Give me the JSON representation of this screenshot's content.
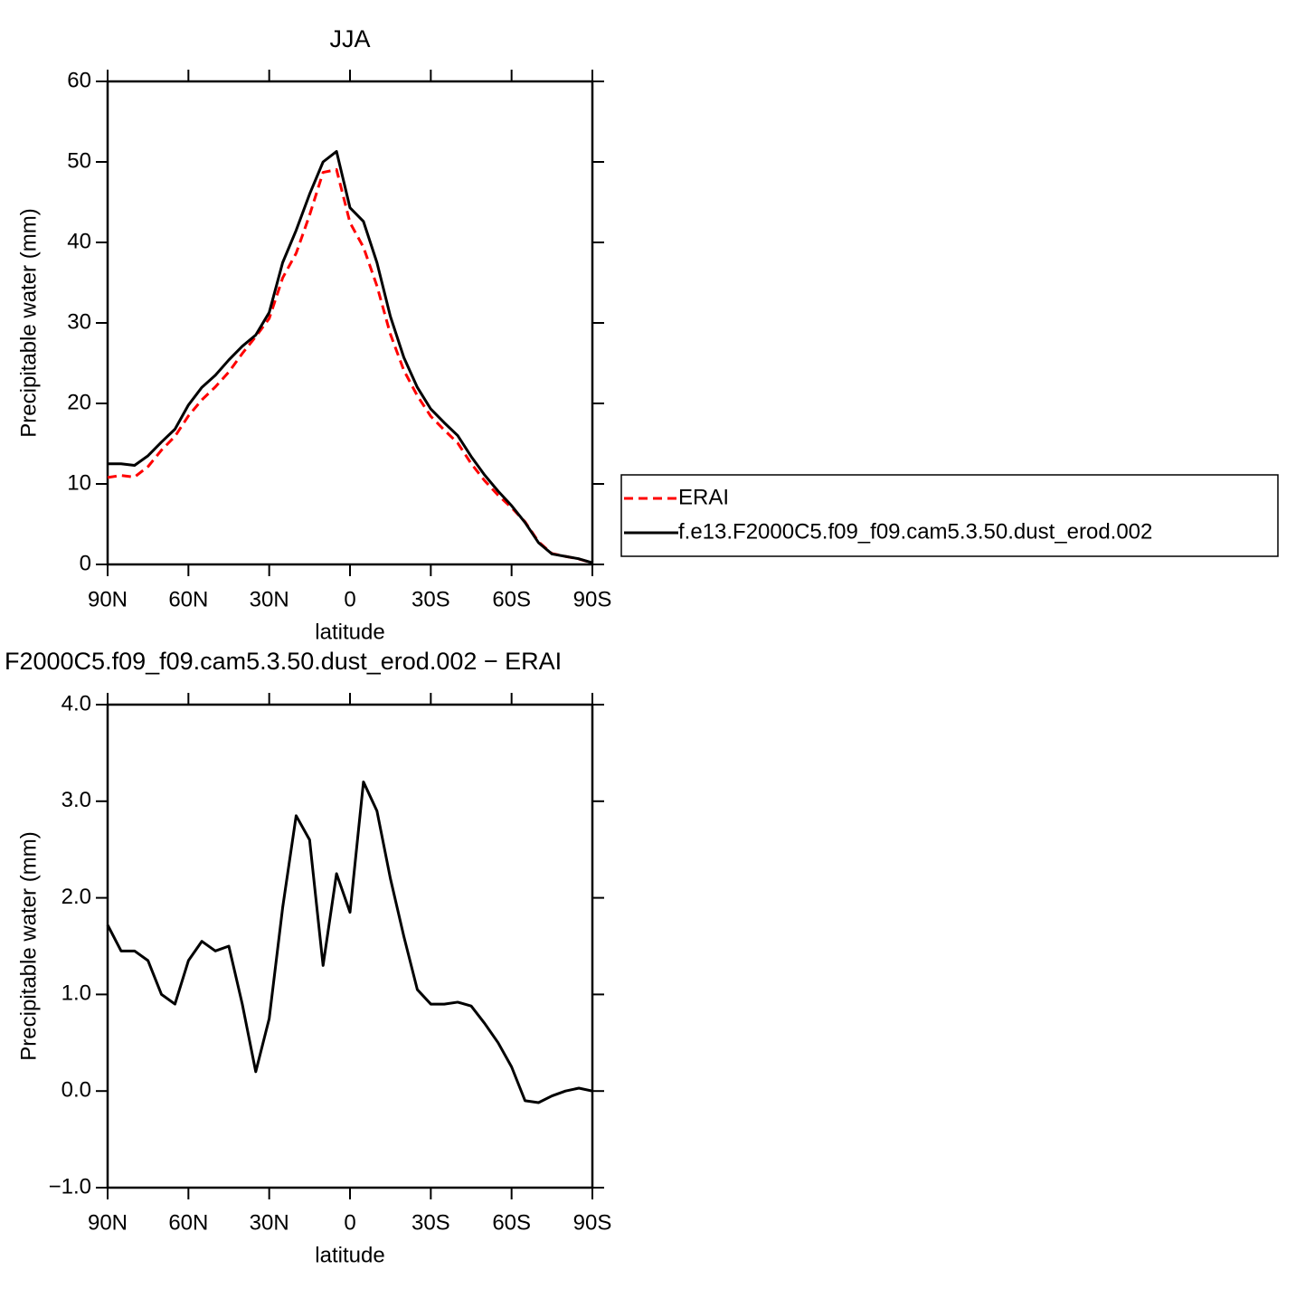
{
  "chart_data": [
    {
      "type": "line",
      "title": "JJA",
      "x_label": "latitude",
      "y_label": "Precipitable water (mm)",
      "x": [
        90,
        85,
        80,
        75,
        70,
        65,
        60,
        55,
        50,
        45,
        40,
        35,
        30,
        25,
        20,
        15,
        10,
        5,
        0,
        -5,
        -10,
        -15,
        -20,
        -25,
        -30,
        -35,
        -40,
        -45,
        -50,
        -55,
        -60,
        -65,
        -70,
        -75,
        -80,
        -85,
        -90
      ],
      "xlim": [
        90,
        -90
      ],
      "xticks": [
        {
          "value": 90,
          "label": "90N"
        },
        {
          "value": 60,
          "label": "60N"
        },
        {
          "value": 30,
          "label": "30N"
        },
        0,
        {
          "value": -30,
          "label": "30S"
        },
        {
          "value": -60,
          "label": "60S"
        },
        {
          "value": -90,
          "label": "90S"
        }
      ],
      "ylim": [
        0,
        60
      ],
      "yticks": [
        0,
        10,
        20,
        30,
        40,
        50,
        60
      ],
      "legend": "right",
      "series": [
        {
          "name": "ERAI",
          "color": "#ff0000",
          "dash": true,
          "values": [
            10.8,
            11.05,
            10.85,
            12.15,
            14.2,
            15.9,
            18.45,
            20.45,
            22.05,
            23.9,
            26.2,
            28.3,
            30.55,
            35.6,
            38.65,
            43.4,
            48.7,
            49.05,
            42.45,
            39.4,
            34.6,
            28.6,
            24.1,
            20.95,
            18.4,
            16.7,
            15.08,
            12.52,
            10.4,
            8.6,
            7.05,
            5.3,
            2.82,
            1.35,
            1.0,
            0.67,
            0.2
          ]
        },
        {
          "name": "f.e13.F2000C5.f09_f09.cam5.3.50.dust_erod.002",
          "color": "#000000",
          "dash": false,
          "values": [
            12.5,
            12.5,
            12.3,
            13.5,
            15.2,
            16.8,
            19.8,
            22.0,
            23.5,
            25.4,
            27.1,
            28.5,
            31.3,
            37.5,
            41.5,
            46.0,
            50.0,
            51.3,
            44.3,
            42.6,
            37.5,
            30.8,
            25.7,
            22.0,
            19.3,
            17.6,
            16.0,
            13.4,
            11.1,
            9.1,
            7.3,
            5.2,
            2.7,
            1.3,
            1.0,
            0.7,
            0.2
          ]
        }
      ]
    },
    {
      "type": "line",
      "title": "F2000C5.f09_f09.cam5.3.50.dust_erod.002 − ERAI",
      "x_label": "latitude",
      "y_label": "Precipitable water (mm)",
      "x": [
        90,
        85,
        80,
        75,
        70,
        65,
        60,
        55,
        50,
        45,
        40,
        35,
        30,
        25,
        20,
        15,
        10,
        5,
        0,
        -5,
        -10,
        -15,
        -20,
        -25,
        -30,
        -35,
        -40,
        -45,
        -50,
        -55,
        -60,
        -65,
        -70,
        -75,
        -80,
        -85,
        -90
      ],
      "xlim": [
        90,
        -90
      ],
      "xticks": [
        {
          "value": 90,
          "label": "90N"
        },
        {
          "value": 60,
          "label": "60N"
        },
        {
          "value": 30,
          "label": "30N"
        },
        0,
        {
          "value": -30,
          "label": "30S"
        },
        {
          "value": -60,
          "label": "60S"
        },
        {
          "value": -90,
          "label": "90S"
        }
      ],
      "ylim": [
        -1,
        4
      ],
      "yticks": [
        {
          "value": -1,
          "label": "−1.0"
        },
        {
          "value": 0,
          "label": "0.0"
        },
        {
          "value": 1,
          "label": "1.0"
        },
        {
          "value": 2,
          "label": "2.0"
        },
        {
          "value": 3,
          "label": "3.0"
        },
        {
          "value": 4,
          "label": "4.0"
        }
      ],
      "series": [
        {
          "color": "#000000",
          "dash": false,
          "values": [
            1.72,
            1.45,
            1.45,
            1.35,
            1.0,
            0.9,
            1.35,
            1.55,
            1.45,
            1.5,
            0.9,
            0.2,
            0.75,
            1.9,
            2.85,
            2.6,
            1.3,
            2.25,
            1.85,
            3.2,
            2.9,
            2.2,
            1.6,
            1.05,
            0.9,
            0.9,
            0.92,
            0.88,
            0.7,
            0.5,
            0.25,
            -0.1,
            -0.12,
            -0.05,
            0.0,
            0.03,
            0.0
          ]
        }
      ]
    }
  ]
}
